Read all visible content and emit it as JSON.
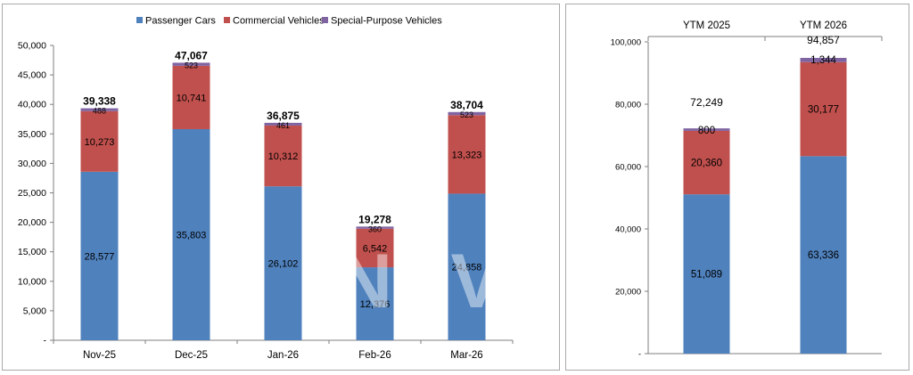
{
  "colors": {
    "passenger": "#4f81bd",
    "commercial": "#c0504d",
    "special": "#8064a2",
    "axis": "#7f7f7f",
    "grid": "#d9d9d9"
  },
  "watermark": "NEV",
  "chart_data": [
    {
      "type": "bar",
      "stacked": true,
      "categories": [
        "Nov-25",
        "Dec-25",
        "Jan-26",
        "Feb-26",
        "Mar-26"
      ],
      "series": [
        {
          "name": "Passenger Cars",
          "values": [
            28577,
            35803,
            26102,
            12376,
            24858
          ]
        },
        {
          "name": "Commercial Vehicles",
          "values": [
            10273,
            10741,
            10312,
            6542,
            13323
          ]
        },
        {
          "name": "Special-Purpose Vehicles",
          "values": [
            488,
            523,
            461,
            360,
            523
          ]
        }
      ],
      "value_labels": [
        [
          "28,577",
          "35,803",
          "26,102",
          "12,376",
          "24,858"
        ],
        [
          "10,273",
          "10,741",
          "10,312",
          "6,542",
          "13,323"
        ],
        [
          "488",
          "523",
          "461",
          "360",
          "523"
        ]
      ],
      "totals": [
        "39,338",
        "47,067",
        "36,875",
        "19,278",
        "38,704"
      ],
      "ylim": [
        0,
        50000
      ],
      "yticks": [
        "-",
        "5,000",
        "10,000",
        "15,000",
        "20,000",
        "25,000",
        "30,000",
        "35,000",
        "40,000",
        "45,000",
        "50,000"
      ],
      "legend_position": "top",
      "grid": false
    },
    {
      "type": "bar",
      "stacked": true,
      "categories": [
        "YTM 2025",
        "YTM 2026"
      ],
      "categories_position": "top",
      "series": [
        {
          "name": "Passenger Cars",
          "values": [
            51089,
            63336
          ]
        },
        {
          "name": "Commercial Vehicles",
          "values": [
            20360,
            30177
          ]
        },
        {
          "name": "Special-Purpose Vehicles",
          "values": [
            800,
            1344
          ]
        }
      ],
      "value_labels": [
        [
          "51,089",
          "63,336"
        ],
        [
          "20,360",
          "30,177"
        ],
        [
          "800",
          "1,344"
        ]
      ],
      "totals": [
        "72,249",
        "94,857"
      ],
      "ylim": [
        0,
        100000
      ],
      "yticks": [
        "-",
        "20,000",
        "40,000",
        "60,000",
        "80,000",
        "100,000"
      ],
      "legend_position": "none",
      "grid": false
    }
  ]
}
